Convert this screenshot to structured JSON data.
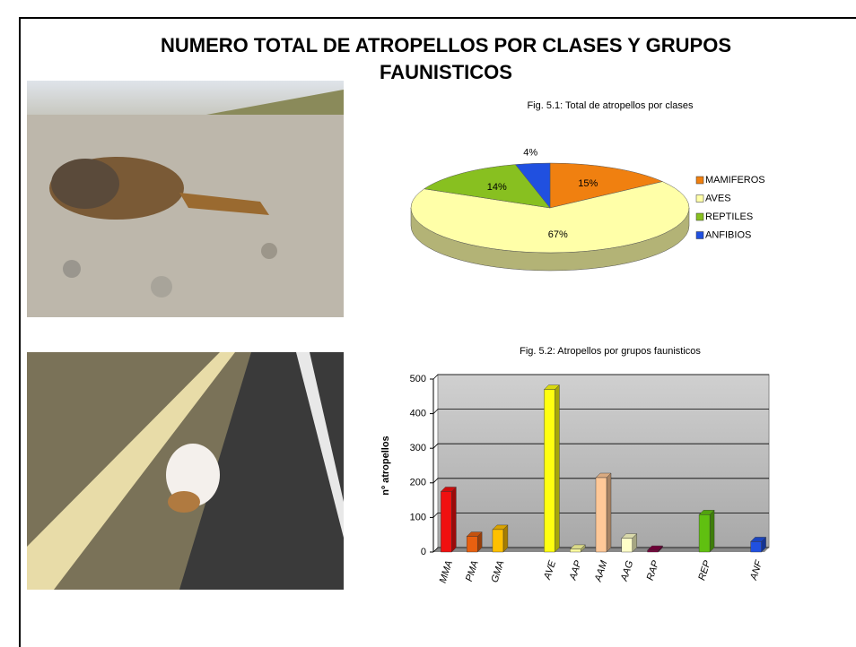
{
  "title": "NUMERO TOTAL DE ATROPELLOS POR CLASES Y GRUPOS FAUNISTICOS",
  "chart_data": [
    {
      "type": "pie",
      "title": "Fig. 5.1: Total de atropellos por clases",
      "categories": [
        "MAMIFEROS",
        "AVES",
        "REPTILES",
        "ANFIBIOS"
      ],
      "values": [
        15,
        67,
        14,
        4
      ],
      "value_labels": [
        "15%",
        "67%",
        "14%",
        "4%"
      ],
      "colors": [
        "#f08010",
        "#ffffa8",
        "#88c020",
        "#2050e0"
      ],
      "legend": "right"
    },
    {
      "type": "bar",
      "title": "Fig. 5.2: Atropellos por grupos faunisticos",
      "y_label": "nº atropellos",
      "categories": [
        "MMA",
        "PMA",
        "GMA",
        null,
        "AVE",
        "AAP",
        "AAM",
        "AAG",
        "RAP",
        null,
        "REP",
        null,
        "ANF"
      ],
      "values": [
        175,
        45,
        65,
        null,
        470,
        8,
        215,
        40,
        5,
        null,
        108,
        null,
        30
      ],
      "colors": [
        "#f01010",
        "#e86010",
        "#ffc000",
        null,
        "#ffff10",
        "#ffffa0",
        "#ffc898",
        "#ffffc8",
        "#800040",
        null,
        "#60c010",
        null,
        "#2050e0"
      ],
      "ylim": [
        0,
        500
      ],
      "yticks": [
        0,
        100,
        200,
        300,
        400,
        500
      ],
      "grid": true
    }
  ]
}
